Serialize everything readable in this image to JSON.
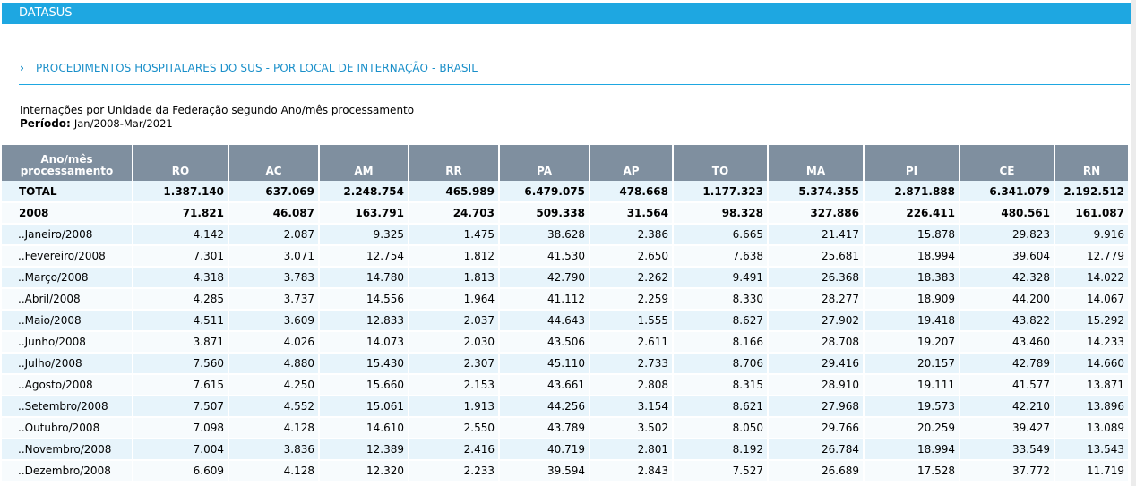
{
  "header": {
    "brand": "DATASUS"
  },
  "section": {
    "title": "PROCEDIMENTOS HOSPITALARES DO SUS - POR LOCAL DE INTERNAÇÃO - BRASIL"
  },
  "report": {
    "subtitle": "Internações por Unidade da Federação segundo Ano/mês processamento",
    "period_label": "Período:",
    "period_value": "Jan/2008-Mar/2021"
  },
  "table": {
    "row_header_line1": "Ano/mês",
    "row_header_line2": "processamento",
    "columns": [
      "RO",
      "AC",
      "AM",
      "RR",
      "PA",
      "AP",
      "TO",
      "MA",
      "PI",
      "CE",
      "RN"
    ],
    "rows": [
      {
        "label": "TOTAL",
        "bold": true,
        "values": [
          "1.387.140",
          "637.069",
          "2.248.754",
          "465.989",
          "6.479.075",
          "478.668",
          "1.177.323",
          "5.374.355",
          "2.871.888",
          "6.341.079",
          "2.192.512"
        ]
      },
      {
        "label": "2008",
        "bold": true,
        "values": [
          "71.821",
          "46.087",
          "163.791",
          "24.703",
          "509.338",
          "31.564",
          "98.328",
          "327.886",
          "226.411",
          "480.561",
          "161.087"
        ]
      },
      {
        "label": "..Janeiro/2008",
        "values": [
          "4.142",
          "2.087",
          "9.325",
          "1.475",
          "38.628",
          "2.386",
          "6.665",
          "21.417",
          "15.878",
          "29.823",
          "9.916"
        ]
      },
      {
        "label": "..Fevereiro/2008",
        "values": [
          "7.301",
          "3.071",
          "12.754",
          "1.812",
          "41.530",
          "2.650",
          "7.638",
          "25.681",
          "18.994",
          "39.604",
          "12.779"
        ]
      },
      {
        "label": "..Março/2008",
        "values": [
          "4.318",
          "3.783",
          "14.780",
          "1.813",
          "42.790",
          "2.262",
          "9.491",
          "26.368",
          "18.383",
          "42.328",
          "14.022"
        ]
      },
      {
        "label": "..Abril/2008",
        "values": [
          "4.285",
          "3.737",
          "14.556",
          "1.964",
          "41.112",
          "2.259",
          "8.330",
          "28.277",
          "18.909",
          "44.200",
          "14.067"
        ]
      },
      {
        "label": "..Maio/2008",
        "values": [
          "4.511",
          "3.609",
          "12.833",
          "2.037",
          "44.643",
          "1.555",
          "8.627",
          "27.902",
          "19.418",
          "43.822",
          "15.292"
        ]
      },
      {
        "label": "..Junho/2008",
        "values": [
          "3.871",
          "4.026",
          "14.073",
          "2.030",
          "43.506",
          "2.611",
          "8.166",
          "28.708",
          "19.207",
          "43.460",
          "14.233"
        ]
      },
      {
        "label": "..Julho/2008",
        "values": [
          "7.560",
          "4.880",
          "15.430",
          "2.307",
          "45.110",
          "2.733",
          "8.706",
          "29.416",
          "20.157",
          "42.789",
          "14.660"
        ]
      },
      {
        "label": "..Agosto/2008",
        "values": [
          "7.615",
          "4.250",
          "15.660",
          "2.153",
          "43.661",
          "2.808",
          "8.315",
          "28.910",
          "19.111",
          "41.577",
          "13.871"
        ]
      },
      {
        "label": "..Setembro/2008",
        "values": [
          "7.507",
          "4.552",
          "15.061",
          "1.913",
          "44.256",
          "3.154",
          "8.621",
          "27.968",
          "19.573",
          "42.210",
          "13.896"
        ]
      },
      {
        "label": "..Outubro/2008",
        "values": [
          "7.098",
          "4.128",
          "14.610",
          "2.550",
          "43.789",
          "3.502",
          "8.050",
          "29.766",
          "20.259",
          "39.427",
          "13.089"
        ]
      },
      {
        "label": "..Novembro/2008",
        "values": [
          "7.004",
          "3.836",
          "12.389",
          "2.416",
          "40.719",
          "2.801",
          "8.192",
          "26.784",
          "18.994",
          "33.549",
          "13.543"
        ]
      },
      {
        "label": "..Dezembro/2008",
        "values": [
          "6.609",
          "4.128",
          "12.320",
          "2.233",
          "39.594",
          "2.843",
          "7.527",
          "26.689",
          "17.528",
          "37.772",
          "11.719"
        ]
      }
    ]
  }
}
